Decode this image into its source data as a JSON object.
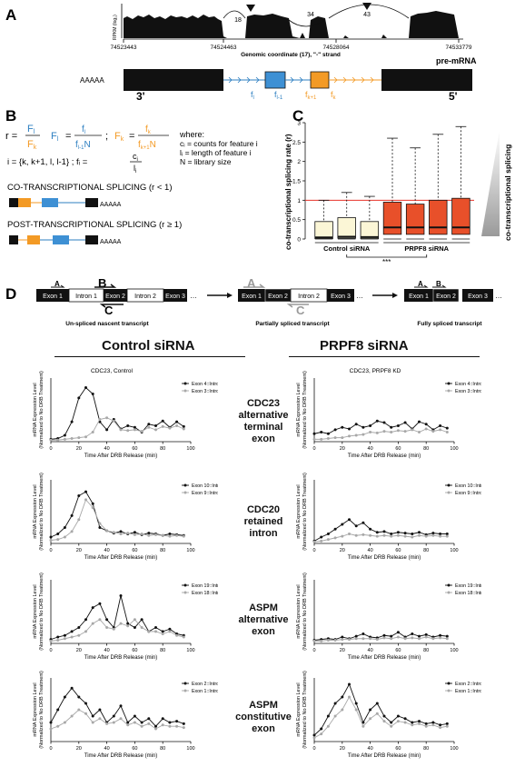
{
  "panel_a": {
    "letter": "A",
    "y_axis_label": "RPKM (log₂)",
    "coords": [
      "74523443",
      "74524463",
      "74528064",
      "74533779"
    ],
    "coord_axis_label": "Genomic coordinate (17), \"-\" strand",
    "junction_counts": [
      "18",
      "34",
      "43"
    ],
    "poly_a": "AAAAA",
    "end_3": "3'",
    "end_5": "5'",
    "premrna_label": "pre-mRNA",
    "feature_labels": [
      "f",
      "f",
      "f",
      "f"
    ],
    "feature_subs": [
      "l",
      "l-1",
      "k+1",
      "k"
    ]
  },
  "panel_b": {
    "letter": "B",
    "r_eq": "r =",
    "r_num": "F",
    "r_num_sub": "l",
    "r_den": "F",
    "r_den_sub": "k",
    "Fl_lhs": "F",
    "Fl_lhs_sub": "l",
    "Fl_num": "f",
    "Fl_num_sub": "l",
    "Fl_den": "f",
    "Fl_den_sub": "l-1",
    "Fl_den_N": "N",
    "Fk_lhs": "F",
    "Fk_lhs_sub": "k",
    "Fk_num": "f",
    "Fk_num_sub": "k",
    "Fk_den": "f",
    "Fk_den_sub": "k+1",
    "Fk_den_N": "N",
    "sep": ";",
    "where": "where:",
    "def1": "cᵢ = counts for feature i",
    "def2": "lᵢ = length of feature i",
    "def3": "N = library size",
    "i_set": "i = {k, k+1, l, l-1} ; fᵢ =",
    "fi_num": "c",
    "fi_num_sub": "i",
    "fi_den": "l",
    "fi_den_sub": "i",
    "co_title": "CO-TRANSCRIPTIONAL SPLICING (r < 1)",
    "post_title": "POST-TRANSCRIPTIONAL SPLICING (r ≥ 1)",
    "poly_a": "AAAAA"
  },
  "panel_c": {
    "letter": "C",
    "ylabel": "co-transcriptional splicing rate (r)",
    "yticks": [
      "0",
      "0.5",
      "1",
      "1.5",
      "2",
      "2.5",
      "3"
    ],
    "group_labels": [
      "Control siRNA",
      "PRPF8 siRNA"
    ],
    "significance": "***",
    "side_label": "co-transcriptional splicing",
    "colors": {
      "control": "#fbf6d6",
      "prpf8": "#e8502a",
      "refline": "#e8322a"
    }
  },
  "chart_data": [
    {
      "type": "box",
      "title": "",
      "ylabel": "co-transcriptional splicing rate (r)",
      "ylim": [
        0,
        3
      ],
      "reference_line": 1,
      "groups": [
        "Control siRNA",
        "PRPF8 siRNA"
      ],
      "boxes": [
        {
          "group": "Control siRNA",
          "q1": 0.01,
          "median": 0.04,
          "q3": 0.45,
          "whisker_low": 0,
          "whisker_high": 1.0
        },
        {
          "group": "Control siRNA",
          "q1": 0.02,
          "median": 0.06,
          "q3": 0.55,
          "whisker_low": 0,
          "whisker_high": 1.2
        },
        {
          "group": "Control siRNA",
          "q1": 0.01,
          "median": 0.05,
          "q3": 0.45,
          "whisker_low": 0,
          "whisker_high": 1.1
        },
        {
          "group": "PRPF8 siRNA",
          "q1": 0.12,
          "median": 0.3,
          "q3": 0.95,
          "whisker_low": 0,
          "whisker_high": 2.6
        },
        {
          "group": "PRPF8 siRNA",
          "q1": 0.12,
          "median": 0.3,
          "q3": 0.9,
          "whisker_low": 0,
          "whisker_high": 2.35
        },
        {
          "group": "PRPF8 siRNA",
          "q1": 0.12,
          "median": 0.3,
          "q3": 1.0,
          "whisker_low": 0,
          "whisker_high": 2.7
        },
        {
          "group": "PRPF8 siRNA",
          "q1": 0.12,
          "median": 0.3,
          "q3": 1.05,
          "whisker_low": 0,
          "whisker_high": 2.9
        }
      ],
      "significance": "***"
    },
    {
      "type": "line",
      "title": "CDC23, Control",
      "xlabel": "Time After DRB Release (min)",
      "ylabel": "mRNA Expression Level\n(Normalized to No DRB Treatment)",
      "xlim": [
        0,
        100
      ],
      "xticks": [
        0,
        20,
        40,
        60,
        80,
        100
      ],
      "x": [
        0,
        5,
        10,
        15,
        20,
        25,
        30,
        35,
        40,
        45,
        50,
        55,
        60,
        65,
        70,
        75,
        80,
        85,
        90,
        95
      ],
      "ylim": [
        0,
        8
      ],
      "series": [
        {
          "name": "Exon 4::Intron 4",
          "values": [
            0.3,
            0.4,
            0.8,
            2.5,
            5.5,
            6.8,
            6.0,
            2.5,
            1.5,
            2.8,
            1.6,
            2.0,
            1.8,
            1.2,
            2.2,
            2.0,
            2.6,
            1.8,
            2.5,
            1.9
          ]
        },
        {
          "name": "Exon 3::Intron 4",
          "values": [
            0.2,
            0.2,
            0.3,
            0.4,
            0.5,
            0.6,
            1.2,
            2.8,
            3.0,
            2.6,
            1.5,
            1.4,
            1.5,
            1.3,
            1.8,
            1.5,
            1.9,
            1.7,
            2.0,
            1.6
          ]
        }
      ]
    },
    {
      "type": "line",
      "title": "CDC23, PRPF8 KD",
      "xlabel": "Time After DRB Release (min)",
      "ylabel": "mRNA Expression Level\n(Normalized to No DRB Treatment)",
      "xlim": [
        0,
        100
      ],
      "xticks": [
        0,
        20,
        40,
        60,
        80,
        100
      ],
      "x": [
        0,
        5,
        10,
        15,
        20,
        25,
        30,
        35,
        40,
        45,
        50,
        55,
        60,
        65,
        70,
        75,
        80,
        85,
        90,
        95
      ],
      "ylim": [
        0,
        8
      ],
      "series": [
        {
          "name": "Exon 4::Intron 4",
          "values": [
            1.0,
            1.2,
            1.0,
            1.5,
            1.8,
            1.6,
            2.2,
            1.8,
            2.0,
            2.6,
            2.4,
            1.8,
            2.0,
            2.4,
            1.6,
            2.5,
            2.2,
            1.5,
            2.0,
            1.7
          ]
        },
        {
          "name": "Exon 3::Intron 4",
          "values": [
            0.3,
            0.3,
            0.4,
            0.5,
            0.5,
            0.7,
            0.8,
            0.9,
            1.2,
            1.1,
            1.3,
            1.2,
            1.4,
            1.3,
            1.5,
            1.2,
            1.6,
            1.3,
            1.5,
            1.2
          ]
        }
      ]
    },
    {
      "type": "line",
      "title": "",
      "xlabel": "Time After DRB Release (min)",
      "ylabel": "mRNA Expression Level\n(Normalized to No DRB Treatment)",
      "xlim": [
        0,
        100
      ],
      "xticks": [
        0,
        20,
        40,
        60,
        80,
        100
      ],
      "x": [
        0,
        5,
        10,
        15,
        20,
        25,
        30,
        35,
        40,
        45,
        50,
        55,
        60,
        65,
        70,
        75,
        80,
        85,
        90,
        95
      ],
      "ylim": [
        0,
        8
      ],
      "series": [
        {
          "name": "Exon 10::Intron 10",
          "values": [
            0.8,
            1.2,
            2.0,
            3.5,
            6.0,
            6.5,
            5.0,
            2.0,
            1.6,
            1.3,
            1.5,
            1.2,
            1.4,
            1.1,
            1.3,
            1.2,
            1.0,
            1.2,
            1.1,
            1.0
          ]
        },
        {
          "name": "Exon 9::Intron 10",
          "values": [
            0.4,
            0.5,
            0.8,
            1.5,
            3.0,
            5.5,
            4.5,
            2.5,
            1.6,
            1.4,
            1.2,
            1.3,
            1.1,
            1.2,
            1.0,
            1.1,
            1.0,
            0.9,
            1.0,
            0.9
          ]
        }
      ]
    },
    {
      "type": "line",
      "title": "",
      "xlabel": "Time After DRB Release (min)",
      "ylabel": "mRNA Expression Level\n(Normalized to No DRB Treatment)",
      "xlim": [
        0,
        100
      ],
      "xticks": [
        0,
        20,
        40,
        60,
        80,
        100
      ],
      "x": [
        0,
        5,
        10,
        15,
        20,
        25,
        30,
        35,
        40,
        45,
        50,
        55,
        60,
        65,
        70,
        75,
        80,
        85,
        90,
        95
      ],
      "ylim": [
        0,
        8
      ],
      "series": [
        {
          "name": "Exon 10::Intron 10",
          "values": [
            0.3,
            0.8,
            1.2,
            1.8,
            2.4,
            3.0,
            2.2,
            2.6,
            1.8,
            1.4,
            1.5,
            1.2,
            1.4,
            1.3,
            1.2,
            1.4,
            1.1,
            1.3,
            1.2,
            1.2
          ]
        },
        {
          "name": "Exon 9::Intron 10",
          "values": [
            0.2,
            0.3,
            0.5,
            0.7,
            0.9,
            1.2,
            1.0,
            1.1,
            1.0,
            0.9,
            1.0,
            0.9,
            1.0,
            0.9,
            0.8,
            1.0,
            0.9,
            1.0,
            0.9,
            0.9
          ]
        }
      ]
    },
    {
      "type": "line",
      "title": "",
      "xlabel": "Time After DRB Release (min)",
      "ylabel": "mRNA Expression Level\n(Normalized to No DRB Treatment)",
      "xlim": [
        0,
        100
      ],
      "xticks": [
        0,
        20,
        40,
        60,
        80,
        100
      ],
      "x": [
        0,
        5,
        10,
        15,
        20,
        25,
        30,
        35,
        40,
        45,
        50,
        55,
        60,
        65,
        70,
        75,
        80,
        85,
        90,
        95
      ],
      "ylim": [
        0,
        8
      ],
      "series": [
        {
          "name": "Exon 19::Intron 19",
          "values": [
            0.5,
            0.8,
            1.0,
            1.5,
            2.0,
            3.0,
            4.5,
            5.0,
            3.0,
            2.0,
            6.0,
            2.5,
            2.0,
            3.0,
            1.5,
            2.0,
            1.5,
            1.8,
            1.2,
            1.0
          ]
        },
        {
          "name": "Exon 18::Intron 19",
          "values": [
            0.3,
            0.4,
            0.6,
            0.8,
            1.0,
            1.5,
            2.5,
            3.0,
            2.0,
            1.8,
            2.5,
            2.2,
            3.0,
            2.0,
            1.5,
            1.5,
            1.2,
            1.5,
            1.0,
            0.8
          ]
        }
      ]
    },
    {
      "type": "line",
      "title": "",
      "xlabel": "Time After DRB Release (min)",
      "ylabel": "mRNA Expression Level\n(Normalized to No DRB Treatment)",
      "xlim": [
        0,
        100
      ],
      "xticks": [
        0,
        20,
        40,
        60,
        80,
        100
      ],
      "x": [
        0,
        5,
        10,
        15,
        20,
        25,
        30,
        35,
        40,
        45,
        50,
        55,
        60,
        65,
        70,
        75,
        80,
        85,
        90,
        95
      ],
      "ylim": [
        0,
        8
      ],
      "series": [
        {
          "name": "Exon 19::Intron 19",
          "values": [
            0.4,
            0.5,
            0.6,
            0.5,
            0.8,
            0.6,
            0.9,
            1.2,
            0.8,
            0.7,
            1.0,
            0.9,
            1.4,
            0.8,
            1.2,
            0.9,
            1.1,
            0.8,
            1.0,
            0.9
          ]
        },
        {
          "name": "Exon 18::Intron 19",
          "values": [
            0.3,
            0.3,
            0.4,
            0.4,
            0.5,
            0.5,
            0.6,
            0.6,
            0.6,
            0.5,
            0.7,
            0.6,
            0.8,
            0.6,
            0.7,
            0.6,
            0.8,
            0.6,
            0.7,
            0.6
          ]
        }
      ]
    },
    {
      "type": "line",
      "title": "",
      "xlabel": "Time After DRB Release (min)",
      "ylabel": "mRNA Expression Level\n(Normalized to No DRB Treatment)",
      "xlim": [
        0,
        100
      ],
      "xticks": [
        0,
        20,
        40,
        60,
        80,
        100
      ],
      "x": [
        0,
        5,
        10,
        15,
        20,
        25,
        30,
        35,
        40,
        45,
        50,
        55,
        60,
        65,
        70,
        75,
        80,
        85,
        90,
        95
      ],
      "ylim": [
        0,
        5
      ],
      "series": [
        {
          "name": "Exon 2::Intron 2",
          "values": [
            1.5,
            2.5,
            3.5,
            4.2,
            3.5,
            3.0,
            2.0,
            2.5,
            1.5,
            2.0,
            2.8,
            1.5,
            2.0,
            1.5,
            1.8,
            1.2,
            1.8,
            1.5,
            1.6,
            1.4
          ]
        },
        {
          "name": "Exon 1::Intron 2",
          "values": [
            1.0,
            1.2,
            1.5,
            2.0,
            2.5,
            2.2,
            1.5,
            1.8,
            1.4,
            1.5,
            1.8,
            1.3,
            1.5,
            1.2,
            1.4,
            1.0,
            1.3,
            1.2,
            1.2,
            1.1
          ]
        }
      ]
    },
    {
      "type": "line",
      "title": "",
      "xlabel": "Time After DRB Release (min)",
      "ylabel": "mRNA Expression Level\n(Normalized to No DRB Treatment)",
      "xlim": [
        0,
        100
      ],
      "xticks": [
        0,
        20,
        40,
        60,
        80,
        100
      ],
      "x": [
        0,
        5,
        10,
        15,
        20,
        25,
        30,
        35,
        40,
        45,
        50,
        55,
        60,
        65,
        70,
        75,
        80,
        85,
        90,
        95
      ],
      "ylim": [
        0,
        5
      ],
      "series": [
        {
          "name": "Exon 2::Intron 2",
          "values": [
            0.5,
            1.0,
            2.0,
            3.0,
            3.5,
            4.5,
            3.0,
            1.5,
            2.5,
            3.0,
            2.0,
            1.5,
            2.0,
            1.8,
            1.5,
            1.6,
            1.4,
            1.5,
            1.3,
            1.4
          ]
        },
        {
          "name": "Exon 1::Intron 2",
          "values": [
            0.3,
            0.6,
            1.2,
            2.0,
            2.5,
            3.5,
            2.5,
            1.2,
            1.8,
            2.2,
            1.6,
            1.2,
            1.6,
            1.5,
            1.3,
            1.4,
            1.2,
            1.3,
            1.1,
            1.2
          ]
        }
      ]
    }
  ],
  "panel_d": {
    "letter": "D",
    "exon1": "Exon 1",
    "intron1": "Intron 1",
    "exon2": "Exon 2",
    "intron2": "Intron 2",
    "exon3": "Exon 3",
    "dots": "…",
    "primer_a": "A",
    "primer_b": "B",
    "primer_c": "C",
    "caption1": "Un-spliced nascent transcript",
    "caption2": "Partially spliced transcript",
    "caption3": "Fully spliced transcript",
    "col_control": "Control siRNA",
    "col_prpf8": "PRPF8 siRNA",
    "genes": [
      {
        "name": "CDC23",
        "line2": "alternative",
        "line3": "terminal",
        "line4": "exon"
      },
      {
        "name": "CDC20",
        "line2": "retained",
        "line3": "intron",
        "line4": ""
      },
      {
        "name": "ASPM",
        "line2": "alternative",
        "line3": "exon",
        "line4": ""
      },
      {
        "name": "ASPM",
        "line2": "constitutive",
        "line3": "exon",
        "line4": ""
      }
    ]
  }
}
